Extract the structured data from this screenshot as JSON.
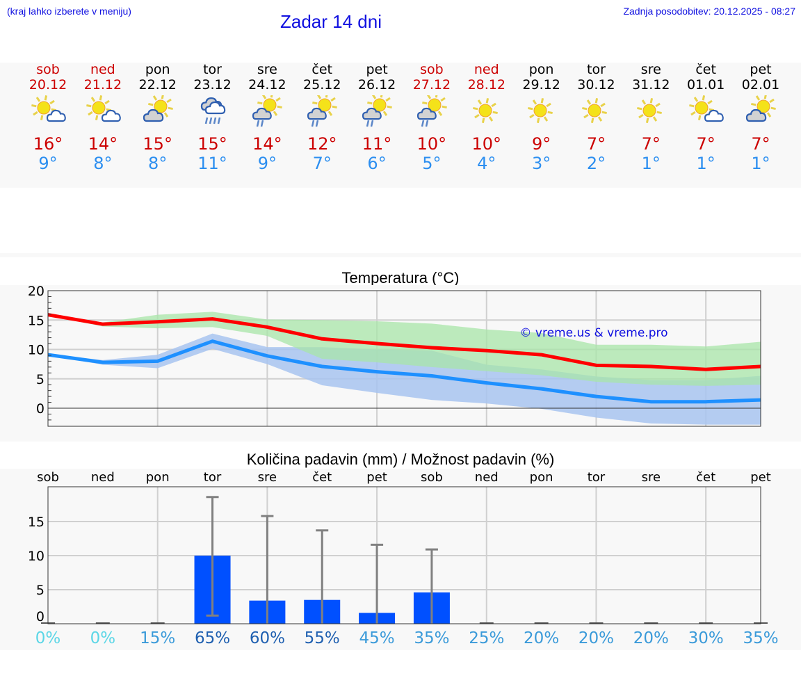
{
  "header": {
    "menu_hint": "(kraj lahko izberete v meniju)",
    "title": "Zadar 14 dni",
    "last_update": "Zadnja posodobitev: 20.12.2025 - 08:27"
  },
  "days": [
    {
      "name": "sob",
      "date": "20.12",
      "weekend": true,
      "icon": "sun-cloud-icon",
      "tmax": "16°",
      "tmin": "9°"
    },
    {
      "name": "ned",
      "date": "21.12",
      "weekend": true,
      "icon": "sun-cloud-icon",
      "tmax": "14°",
      "tmin": "8°"
    },
    {
      "name": "pon",
      "date": "22.12",
      "weekend": false,
      "icon": "cloud-sun-icon",
      "tmax": "15°",
      "tmin": "8°"
    },
    {
      "name": "tor",
      "date": "23.12",
      "weekend": false,
      "icon": "rain-cloud-icon",
      "tmax": "15°",
      "tmin": "11°"
    },
    {
      "name": "sre",
      "date": "24.12",
      "weekend": false,
      "icon": "sun-cloud-rain-icon",
      "tmax": "14°",
      "tmin": "9°"
    },
    {
      "name": "čet",
      "date": "25.12",
      "weekend": false,
      "icon": "sun-cloud-rain-icon",
      "tmax": "12°",
      "tmin": "7°"
    },
    {
      "name": "pet",
      "date": "26.12",
      "weekend": false,
      "icon": "sun-cloud-rain-icon",
      "tmax": "11°",
      "tmin": "6°"
    },
    {
      "name": "sob",
      "date": "27.12",
      "weekend": true,
      "icon": "sun-cloud-rain-icon",
      "tmax": "10°",
      "tmin": "5°"
    },
    {
      "name": "ned",
      "date": "28.12",
      "weekend": true,
      "icon": "sun-icon",
      "tmax": "10°",
      "tmin": "4°"
    },
    {
      "name": "pon",
      "date": "29.12",
      "weekend": false,
      "icon": "sun-icon",
      "tmax": "9°",
      "tmin": "3°"
    },
    {
      "name": "tor",
      "date": "30.12",
      "weekend": false,
      "icon": "sun-icon",
      "tmax": "7°",
      "tmin": "2°"
    },
    {
      "name": "sre",
      "date": "31.12",
      "weekend": false,
      "icon": "sun-icon",
      "tmax": "7°",
      "tmin": "1°"
    },
    {
      "name": "čet",
      "date": "01.01",
      "weekend": false,
      "icon": "sun-cloud-icon",
      "tmax": "7°",
      "tmin": "1°"
    },
    {
      "name": "pet",
      "date": "02.01",
      "weekend": false,
      "icon": "cloud-sun-icon",
      "tmax": "7°",
      "tmin": "1°"
    }
  ],
  "colors": {
    "max_line": "#ff0000",
    "min_line": "#1e90ff",
    "max_band": "#a8e6a8",
    "min_band": "#a8c4f0",
    "overlap_band": "#7cc6a4",
    "bar": "#0050ff",
    "error_bar": "#808080",
    "weekend_text": "#cc0000",
    "tmax_text": "#cc0000",
    "tmin_text": "#2b8ef0",
    "link_text": "#1010e0"
  },
  "chart_data": [
    {
      "type": "line",
      "title": "Temperatura (°C)",
      "xlabel": "",
      "ylabel": "",
      "ylim": [
        -3,
        20
      ],
      "yticks": [
        0,
        5,
        10,
        15,
        20
      ],
      "grid": true,
      "watermark": "© vreme.us & vreme.pro",
      "categories": [
        "20.12",
        "21.12",
        "22.12",
        "23.12",
        "24.12",
        "25.12",
        "26.12",
        "27.12",
        "28.12",
        "29.12",
        "30.12",
        "31.12",
        "01.01",
        "02.01"
      ],
      "series": [
        {
          "name": "Max temperature",
          "values": [
            15.9,
            14.3,
            14.7,
            15.2,
            13.8,
            11.8,
            11.0,
            10.3,
            9.8,
            9.1,
            7.3,
            7.1,
            6.6,
            7.1
          ]
        },
        {
          "name": "Max range upper",
          "values": [
            16.0,
            14.6,
            15.9,
            16.4,
            15.1,
            15.0,
            14.8,
            14.4,
            13.4,
            12.8,
            10.8,
            10.8,
            10.5,
            11.3
          ]
        },
        {
          "name": "Max range lower",
          "values": [
            15.8,
            13.9,
            13.6,
            13.8,
            12.3,
            8.4,
            7.8,
            7.0,
            6.3,
            5.6,
            4.5,
            4.0,
            3.8,
            4.0
          ]
        },
        {
          "name": "Min temperature",
          "values": [
            9.1,
            7.8,
            8.0,
            11.4,
            8.9,
            7.1,
            6.2,
            5.5,
            4.3,
            3.3,
            2.0,
            1.1,
            1.1,
            1.4
          ]
        },
        {
          "name": "Min range upper",
          "values": [
            9.2,
            8.2,
            9.1,
            12.7,
            10.4,
            10.4,
            10.0,
            9.8,
            7.4,
            6.6,
            5.4,
            4.8,
            4.8,
            5.5
          ]
        },
        {
          "name": "Min range lower",
          "values": [
            9.0,
            7.4,
            6.8,
            10.1,
            7.5,
            3.9,
            2.6,
            1.4,
            0.8,
            -0.1,
            -1.6,
            -2.6,
            -2.8,
            -2.8
          ]
        }
      ]
    },
    {
      "type": "bar",
      "title": "Količina padavin (mm) / Možnost padavin (%)",
      "xlabel": "",
      "ylabel": "",
      "ylim": [
        0,
        20
      ],
      "yticks": [
        0,
        5,
        10,
        15
      ],
      "grid": true,
      "categories": [
        "sob",
        "ned",
        "pon",
        "tor",
        "sre",
        "čet",
        "pet",
        "sob",
        "ned",
        "pon",
        "tor",
        "sre",
        "čet",
        "pet"
      ],
      "series": [
        {
          "name": "Količina padavin (mm)",
          "values": [
            0,
            0,
            0,
            10.0,
            3.4,
            3.5,
            1.6,
            4.6,
            0,
            0,
            0,
            0,
            0,
            0
          ]
        },
        {
          "name": "Error upper (mm)",
          "values": [
            0,
            0,
            0,
            18.6,
            15.8,
            13.7,
            11.6,
            10.9,
            0,
            0,
            0,
            0,
            0,
            0
          ]
        },
        {
          "name": "Error lower (mm)",
          "values": [
            0,
            0,
            0,
            1.2,
            0,
            0,
            0,
            0,
            0,
            0,
            0,
            0,
            0,
            0
          ]
        },
        {
          "name": "Možnost padavin (%)",
          "values": [
            0,
            0,
            15,
            65,
            60,
            55,
            45,
            35,
            25,
            20,
            20,
            20,
            30,
            35
          ]
        }
      ],
      "percent_labels": [
        "0%",
        "0%",
        "15%",
        "65%",
        "60%",
        "55%",
        "45%",
        "35%",
        "25%",
        "20%",
        "20%",
        "20%",
        "30%",
        "35%"
      ],
      "percent_colors": [
        "#5bd6e6",
        "#5bd6e6",
        "#3a9ad9",
        "#1e5fb0",
        "#1e5fb0",
        "#1e5fb0",
        "#3a9ad9",
        "#3a9ad9",
        "#3a9ad9",
        "#3a9ad9",
        "#3a9ad9",
        "#3a9ad9",
        "#3a9ad9",
        "#3a9ad9"
      ]
    }
  ]
}
